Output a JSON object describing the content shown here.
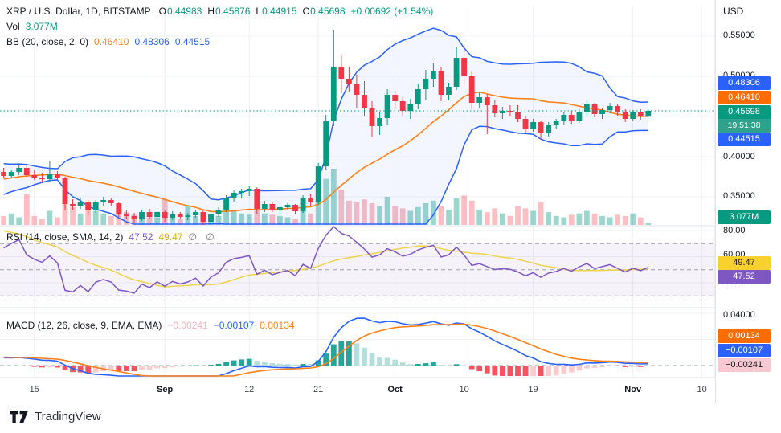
{
  "header": {
    "title": "XRP / U.S. Dollar, 1D, BITSTAMP",
    "ohlc": [
      {
        "label": "O",
        "value": "0.44983"
      },
      {
        "label": "H",
        "value": "0.45876"
      },
      {
        "label": "L",
        "value": "0.44915"
      },
      {
        "label": "C",
        "value": "0.45698"
      }
    ],
    "change": "+0.00692 (+1.54%)",
    "volume": {
      "label": "Vol",
      "value": "3.077M"
    },
    "bollinger": {
      "label": "BB (20, close, 2, 0)",
      "values": [
        {
          "value": "0.46410",
          "color": "#F7831B"
        },
        {
          "value": "0.48306",
          "color": "#2962FF"
        },
        {
          "value": "0.44515",
          "color": "#2962FF"
        }
      ]
    }
  },
  "rsi_pane": {
    "label": "RSI (14, close, SMA, 14, 2)",
    "values": [
      {
        "value": "47.52",
        "color": "#7E57C2"
      },
      {
        "value": "49.47",
        "color": "#D8B20D"
      }
    ],
    "empty": "∅ ∅",
    "axis_labels": [
      "80.00",
      "60.00",
      "40.00"
    ]
  },
  "macd_pane": {
    "label": "MACD (12, 26, close, 9, EMA, EMA)",
    "values": [
      {
        "value": "−0.00241",
        "color": "#F5B0BE"
      },
      {
        "value": "−0.00107",
        "color": "#2962FF"
      },
      {
        "value": "0.00134",
        "color": "#F7831B"
      }
    ],
    "axis_labels": [
      "0.04000"
    ]
  },
  "price_axis": {
    "currency": "USD",
    "labels": [
      "0.55000",
      "0.50000",
      "0.40000",
      "0.35000"
    ],
    "badges": [
      {
        "text": "0.48306",
        "bg": "#2962FF",
        "fg": "#FFFFFF"
      },
      {
        "text": "0.46410",
        "bg": "#FF6D00",
        "fg": "#FFFFFF"
      },
      {
        "text": "0.45698",
        "sub": "19:51:38",
        "bg": "#089981",
        "sub_bg": "#2FA28D",
        "fg": "#FFFFFF"
      },
      {
        "text": "0.44515",
        "bg": "#2962FF",
        "fg": "#FFFFFF"
      },
      {
        "text": "3.077M",
        "bg": "#089981",
        "fg": "#FFFFFF"
      }
    ],
    "rsi_badges": [
      {
        "text": "49.47",
        "bg": "#F8D12F",
        "fg": "#131722"
      },
      {
        "text": "47.52",
        "bg": "#7E57C2",
        "fg": "#FFFFFF"
      }
    ],
    "macd_badges": [
      {
        "text": "0.00134",
        "bg": "#FF6D00",
        "fg": "#FFFFFF"
      },
      {
        "text": "−0.00107",
        "bg": "#2962FF",
        "fg": "#FFFFFF"
      },
      {
        "text": "−0.00241",
        "bg": "#F8C9D0",
        "fg": "#131722"
      }
    ]
  },
  "footer": {
    "brand": "TradingView"
  },
  "colors": {
    "candle_up": "#089981",
    "candle_down": "#F23645",
    "bb_band": "#2962FF",
    "bb_basis": "#FF8117",
    "rsi_line": "#7E57C2",
    "rsi_ma_line": "#EFD34A",
    "macd_line": "#2962FF",
    "macd_signal": "#FF8117",
    "hist_up_grow": "#26A69A",
    "hist_up_fall": "#B2DFDB",
    "hist_dn_fall": "#F7525F",
    "hist_dn_grow": "#FCCBCD"
  },
  "chart_data": {
    "type": "candlestick",
    "title": "XRP / U.S. Dollar, 1D, BITSTAMP",
    "ylabel": "USD",
    "ylim": [
      0.315,
      0.587
    ],
    "price_gridlines": [
      0.55,
      0.5,
      0.45,
      0.4,
      0.35
    ],
    "last_price": 0.45698,
    "last_bar_countdown": "19:51:38",
    "time_ticks": [
      {
        "label": "15",
        "index": 4
      },
      {
        "label": "Sep",
        "index": 21,
        "major": true
      },
      {
        "label": "12",
        "index": 32
      },
      {
        "label": "21",
        "index": 41
      },
      {
        "label": "Oct",
        "index": 51,
        "major": true
      },
      {
        "label": "10",
        "index": 60
      },
      {
        "label": "19",
        "index": 69
      },
      {
        "label": "Nov",
        "index": 82,
        "major": true
      },
      {
        "label": "10",
        "index": 91
      }
    ],
    "indicators": {
      "bollinger_bands": {
        "settings": "20, close, 2, 0",
        "basis": 0.4641,
        "upper": 0.48306,
        "lower": 0.44515
      },
      "volume": {
        "last_value_millions": 3.077
      },
      "rsi": {
        "settings": "14, close, SMA, 14, 2",
        "value": 47.52,
        "ma_value": 49.47,
        "levels": [
          70,
          50,
          30
        ],
        "axis_ticks": [
          80,
          60,
          40
        ]
      },
      "macd": {
        "settings": "12, 26, close, 9, EMA, EMA",
        "histogram": -0.00241,
        "macd": -0.00107,
        "signal": 0.00134,
        "axis_ticks": [
          0.04,
          0.02
        ]
      }
    },
    "candles": [
      [
        0.381,
        0.386,
        0.373,
        0.376,
        14
      ],
      [
        0.376,
        0.384,
        0.373,
        0.381,
        18
      ],
      [
        0.381,
        0.389,
        0.377,
        0.386,
        12
      ],
      [
        0.386,
        0.39,
        0.374,
        0.377,
        48
      ],
      [
        0.377,
        0.383,
        0.371,
        0.374,
        14
      ],
      [
        0.374,
        0.38,
        0.369,
        0.372,
        10
      ],
      [
        0.372,
        0.395,
        0.369,
        0.378,
        22
      ],
      [
        0.378,
        0.382,
        0.371,
        0.373,
        12
      ],
      [
        0.373,
        0.375,
        0.334,
        0.341,
        55
      ],
      [
        0.341,
        0.347,
        0.333,
        0.338,
        28
      ],
      [
        0.338,
        0.348,
        0.335,
        0.344,
        18
      ],
      [
        0.344,
        0.346,
        0.327,
        0.333,
        30
      ],
      [
        0.333,
        0.346,
        0.33,
        0.343,
        22
      ],
      [
        0.343,
        0.35,
        0.338,
        0.346,
        18
      ],
      [
        0.346,
        0.349,
        0.339,
        0.342,
        14
      ],
      [
        0.342,
        0.344,
        0.325,
        0.328,
        26
      ],
      [
        0.328,
        0.333,
        0.323,
        0.326,
        20
      ],
      [
        0.326,
        0.33,
        0.318,
        0.322,
        16
      ],
      [
        0.322,
        0.334,
        0.32,
        0.331,
        14
      ],
      [
        0.331,
        0.335,
        0.322,
        0.325,
        12
      ],
      [
        0.325,
        0.334,
        0.323,
        0.331,
        12
      ],
      [
        0.331,
        0.333,
        0.319,
        0.324,
        40
      ],
      [
        0.324,
        0.332,
        0.321,
        0.329,
        16
      ],
      [
        0.329,
        0.331,
        0.323,
        0.325,
        10
      ],
      [
        0.325,
        0.33,
        0.321,
        0.327,
        30
      ],
      [
        0.327,
        0.334,
        0.324,
        0.331,
        14
      ],
      [
        0.331,
        0.333,
        0.315,
        0.319,
        20
      ],
      [
        0.319,
        0.331,
        0.317,
        0.329,
        16
      ],
      [
        0.329,
        0.337,
        0.325,
        0.334,
        14
      ],
      [
        0.334,
        0.352,
        0.331,
        0.349,
        30
      ],
      [
        0.349,
        0.358,
        0.344,
        0.355,
        24
      ],
      [
        0.355,
        0.36,
        0.349,
        0.357,
        18
      ],
      [
        0.357,
        0.363,
        0.351,
        0.36,
        16
      ],
      [
        0.36,
        0.362,
        0.329,
        0.335,
        34
      ],
      [
        0.335,
        0.345,
        0.331,
        0.341,
        18
      ],
      [
        0.341,
        0.344,
        0.331,
        0.334,
        16
      ],
      [
        0.334,
        0.34,
        0.327,
        0.337,
        14
      ],
      [
        0.337,
        0.342,
        0.333,
        0.34,
        12
      ],
      [
        0.34,
        0.341,
        0.329,
        0.332,
        10
      ],
      [
        0.332,
        0.352,
        0.33,
        0.349,
        22
      ],
      [
        0.349,
        0.353,
        0.339,
        0.343,
        18
      ],
      [
        0.343,
        0.392,
        0.34,
        0.388,
        40
      ],
      [
        0.388,
        0.452,
        0.384,
        0.444,
        72
      ],
      [
        0.444,
        0.558,
        0.438,
        0.512,
        88
      ],
      [
        0.512,
        0.527,
        0.479,
        0.497,
        55
      ],
      [
        0.497,
        0.511,
        0.481,
        0.491,
        38
      ],
      [
        0.491,
        0.502,
        0.461,
        0.477,
        36
      ],
      [
        0.477,
        0.494,
        0.451,
        0.46,
        40
      ],
      [
        0.46,
        0.469,
        0.424,
        0.438,
        34
      ],
      [
        0.438,
        0.455,
        0.427,
        0.448,
        30
      ],
      [
        0.448,
        0.484,
        0.439,
        0.477,
        44
      ],
      [
        0.477,
        0.482,
        0.461,
        0.469,
        30
      ],
      [
        0.469,
        0.474,
        0.451,
        0.457,
        26
      ],
      [
        0.457,
        0.472,
        0.447,
        0.465,
        22
      ],
      [
        0.465,
        0.49,
        0.459,
        0.484,
        28
      ],
      [
        0.484,
        0.508,
        0.471,
        0.497,
        34
      ],
      [
        0.497,
        0.516,
        0.487,
        0.507,
        38
      ],
      [
        0.507,
        0.512,
        0.469,
        0.477,
        30
      ],
      [
        0.477,
        0.492,
        0.471,
        0.487,
        24
      ],
      [
        0.487,
        0.536,
        0.483,
        0.523,
        42
      ],
      [
        0.523,
        0.542,
        0.491,
        0.501,
        46
      ],
      [
        0.501,
        0.506,
        0.459,
        0.467,
        38
      ],
      [
        0.467,
        0.48,
        0.461,
        0.474,
        24
      ],
      [
        0.474,
        0.478,
        0.428,
        0.464,
        20
      ],
      [
        0.464,
        0.471,
        0.449,
        0.454,
        26
      ],
      [
        0.454,
        0.462,
        0.447,
        0.457,
        18
      ],
      [
        0.457,
        0.464,
        0.451,
        0.455,
        14
      ],
      [
        0.455,
        0.464,
        0.443,
        0.447,
        30
      ],
      [
        0.447,
        0.451,
        0.429,
        0.435,
        26
      ],
      [
        0.435,
        0.447,
        0.431,
        0.443,
        22
      ],
      [
        0.443,
        0.445,
        0.421,
        0.429,
        36
      ],
      [
        0.429,
        0.443,
        0.425,
        0.44,
        20
      ],
      [
        0.44,
        0.447,
        0.435,
        0.444,
        14
      ],
      [
        0.444,
        0.455,
        0.439,
        0.452,
        12
      ],
      [
        0.452,
        0.457,
        0.441,
        0.445,
        16
      ],
      [
        0.445,
        0.459,
        0.442,
        0.456,
        18
      ],
      [
        0.456,
        0.469,
        0.451,
        0.465,
        22
      ],
      [
        0.465,
        0.467,
        0.449,
        0.453,
        18
      ],
      [
        0.453,
        0.461,
        0.447,
        0.458,
        14
      ],
      [
        0.458,
        0.467,
        0.454,
        0.463,
        12
      ],
      [
        0.463,
        0.466,
        0.451,
        0.455,
        16
      ],
      [
        0.455,
        0.459,
        0.443,
        0.447,
        14
      ],
      [
        0.447,
        0.458,
        0.444,
        0.455,
        18
      ],
      [
        0.455,
        0.459,
        0.446,
        0.45,
        12
      ],
      [
        0.44983,
        0.45876,
        0.44915,
        0.45698,
        3.077
      ]
    ]
  }
}
